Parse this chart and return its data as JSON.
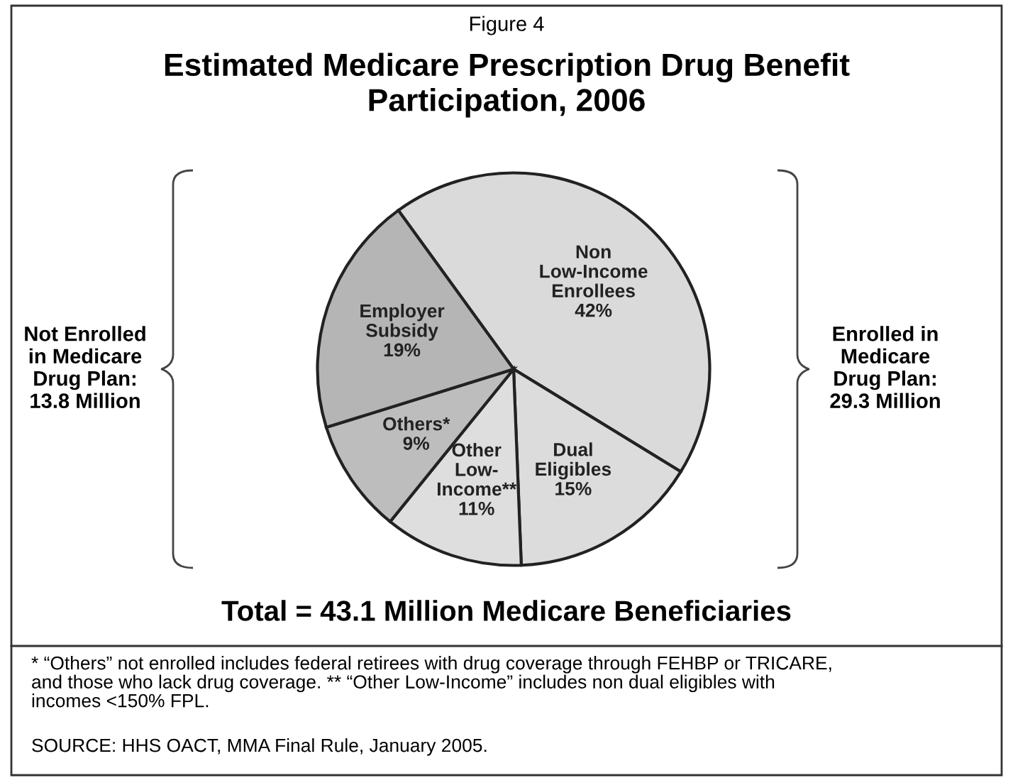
{
  "chart_data": {
    "type": "pie",
    "subtitle": "Figure 4",
    "title": "Estimated Medicare Prescription Drug Benefit\nParticipation, 2006",
    "categories": [
      "Non\nLow-Income\nEnrollees",
      "Dual\nEligibles",
      "Other\nLow-\nIncome**",
      "Others*",
      "Employer\nSubsidy"
    ],
    "values": [
      42,
      15,
      11,
      9,
      19
    ],
    "value_labels": [
      "42%",
      "15%",
      "11%",
      "9%",
      "19%"
    ],
    "colors": [
      "#dadada",
      "#dcdcdc",
      "#dedede",
      "#bdbdbd",
      "#b5b5b5"
    ],
    "annotations": [
      "Not Enrolled\nin Medicare\nDrug Plan:\n13.8 Million",
      "Enrolled in\nMedicare\nDrug Plan:\n29.3 Million",
      "Total = 43.1 Million Medicare Beneficiaries",
      "* “Others” not enrolled includes federal retirees with drug coverage through FEHBP or TRICARE,\nand those who lack drug coverage. ** “Other Low-Income” includes non dual eligibles with\nincomes <150% FPL.",
      "SOURCE: HHS OACT, MMA Final Rule, January 2005."
    ]
  }
}
